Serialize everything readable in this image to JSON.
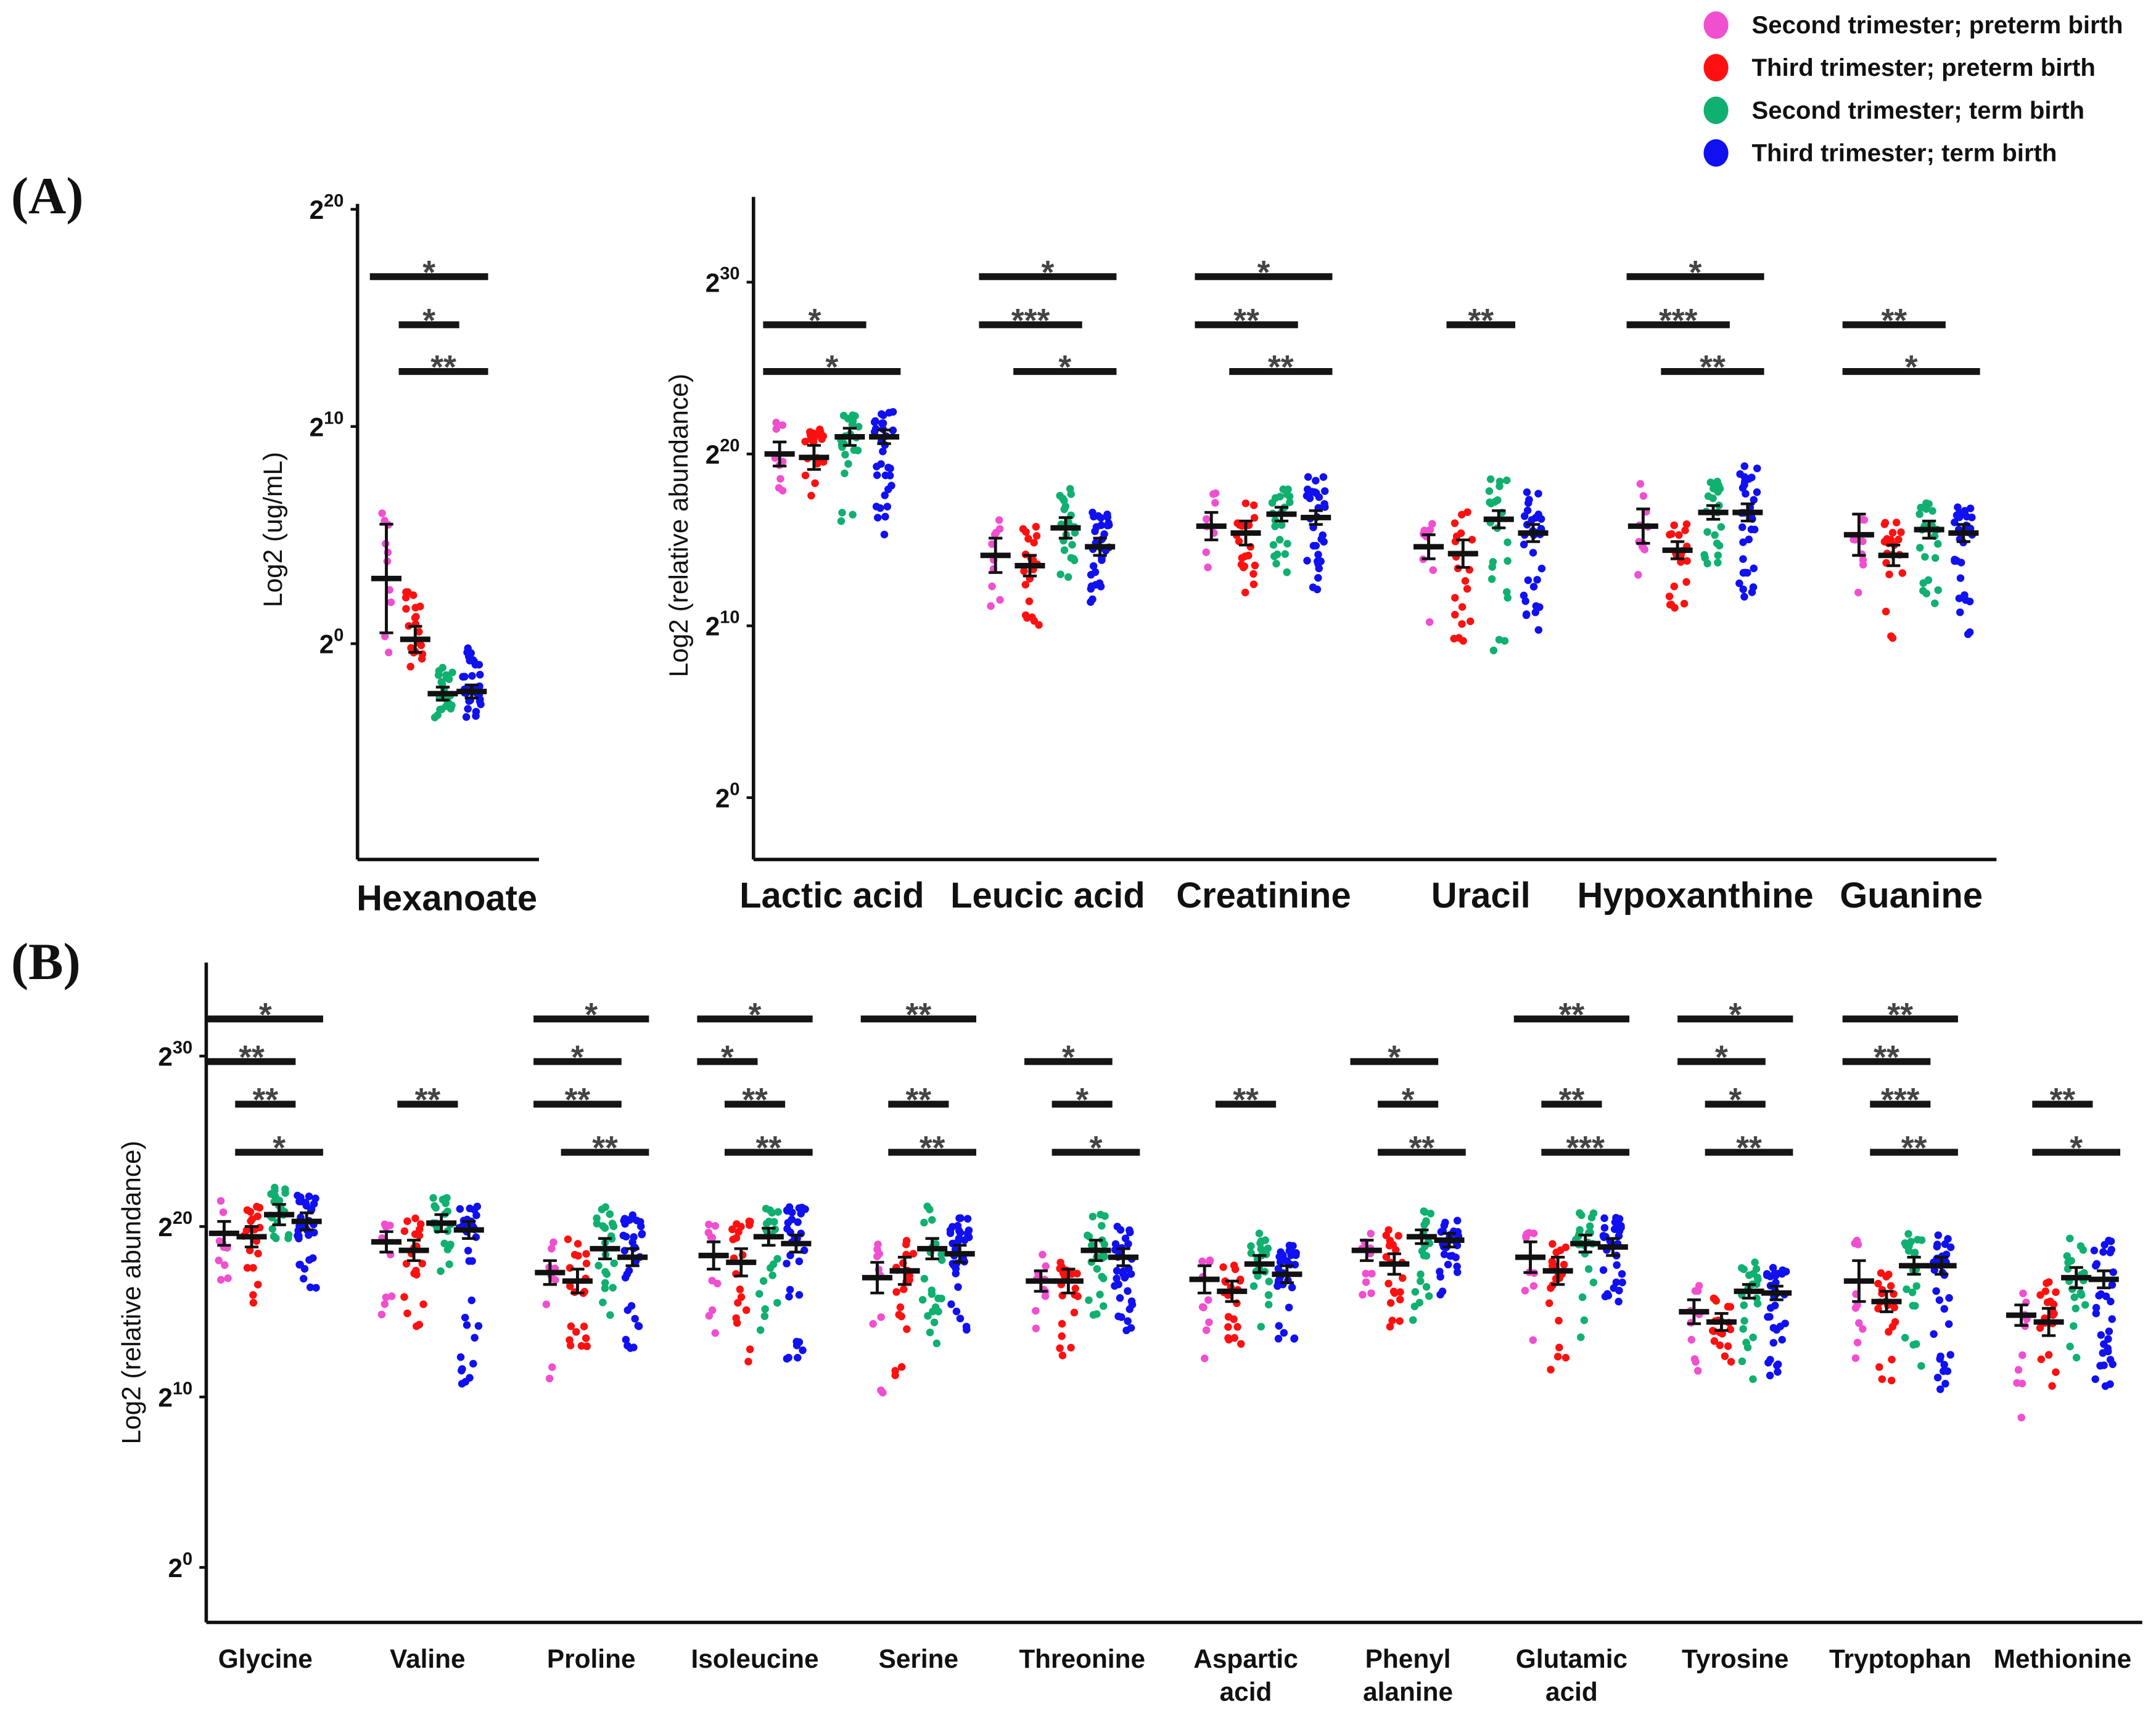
{
  "panels": {
    "a": "(A)",
    "b": "(B)"
  },
  "legend": [
    {
      "label": "Second trimester; preterm birth",
      "color": "#f04fd0"
    },
    {
      "label": "Third trimester; preterm birth",
      "color": "#ff1010"
    },
    {
      "label": "Second trimester; term birth",
      "color": "#10b070"
    },
    {
      "label": "Third trimester; term birth",
      "color": "#1010f0"
    }
  ],
  "chart_data": [
    {
      "type": "scatter",
      "id": "hex",
      "ylabel": "Log2 (ug/mL)",
      "yticks": [
        0,
        10,
        20
      ],
      "tick_base": "2",
      "ylim": [
        -10,
        20
      ],
      "compounds": [
        {
          "name": [
            "Hexanoate"
          ],
          "medians": [
            3.0,
            0.2,
            -2.3,
            -2.2
          ],
          "sem": [
            2.5,
            0.6,
            0.3,
            0.3
          ],
          "spread": [
            [
              -4,
              3.5
            ],
            [
              -2,
              3
            ],
            [
              -1.2,
              1.2
            ],
            [
              -1.2,
              2.2
            ]
          ],
          "sig": [
            {
              "from": 0,
              "to": 3,
              "label": "*",
              "level": 0
            },
            {
              "from": 1,
              "to": 2,
              "label": "*",
              "level": 1
            },
            {
              "from": 1,
              "to": 3,
              "label": "**",
              "level": 2
            }
          ]
        }
      ]
    },
    {
      "type": "scatter",
      "id": "A",
      "ylabel": "Log2 (relative abundance)",
      "yticks": [
        0,
        10,
        20,
        30
      ],
      "tick_base": "2",
      "ylim": [
        -3.5,
        35
      ],
      "compounds": [
        {
          "name": [
            "Lactic acid"
          ],
          "medians": [
            20.0,
            19.8,
            21.0,
            21.0
          ],
          "sem": [
            0.7,
            0.7,
            0.5,
            0.4
          ],
          "spread": [
            [
              -2.6,
              2
            ],
            [
              -3,
              2
            ],
            [
              -5.5,
              1.5
            ],
            [
              -6,
              1.5
            ]
          ],
          "sig": [
            {
              "from": 0,
              "to": 2,
              "label": "*",
              "level": 1
            },
            {
              "from": 0,
              "to": 3,
              "label": "*",
              "level": 2
            }
          ]
        },
        {
          "name": [
            "Leucic acid"
          ],
          "medians": [
            14.1,
            13.5,
            15.7,
            14.6
          ],
          "sem": [
            1.0,
            0.6,
            0.6,
            0.5
          ],
          "spread": [
            [
              -3.5,
              2.5
            ],
            [
              -3.5,
              2.5
            ],
            [
              -3,
              2.5
            ],
            [
              -3.8,
              2.2
            ]
          ],
          "sig": [
            {
              "from": 0,
              "to": 3,
              "label": "*",
              "level": 0
            },
            {
              "from": 0,
              "to": 2,
              "label": "***",
              "level": 1
            },
            {
              "from": 1,
              "to": 3,
              "label": "*",
              "level": 2
            }
          ]
        },
        {
          "name": [
            "Creatinine"
          ],
          "medians": [
            15.8,
            15.4,
            16.5,
            16.3
          ],
          "sem": [
            0.8,
            0.7,
            0.4,
            0.4
          ],
          "spread": [
            [
              -3,
              2.5
            ],
            [
              -4,
              2
            ],
            [
              -3.4,
              1.5
            ],
            [
              -4.5,
              2.5
            ]
          ],
          "sig": [
            {
              "from": 0,
              "to": 3,
              "label": "*",
              "level": 0
            },
            {
              "from": 0,
              "to": 2,
              "label": "**",
              "level": 1
            },
            {
              "from": 1,
              "to": 3,
              "label": "**",
              "level": 2
            }
          ]
        },
        {
          "name": [
            "Uracil"
          ],
          "medians": [
            14.6,
            14.2,
            16.2,
            15.4
          ],
          "sem": [
            0.7,
            0.8,
            0.5,
            0.5
          ],
          "spread": [
            [
              -5,
              2
            ],
            [
              -6,
              2.5
            ],
            [
              -8,
              2.5
            ],
            [
              -6.5,
              2.5
            ]
          ],
          "sig": [
            {
              "from": 1,
              "to": 2,
              "label": "**",
              "level": 1
            }
          ]
        },
        {
          "name": [
            "Hypoxanthine"
          ],
          "medians": [
            15.8,
            14.4,
            16.6,
            16.6
          ],
          "sem": [
            1.0,
            0.5,
            0.4,
            0.5
          ],
          "spread": [
            [
              -3.5,
              2.5
            ],
            [
              -3.4,
              2
            ],
            [
              -3.4,
              2
            ],
            [
              -5,
              2.8
            ]
          ],
          "sig": [
            {
              "from": 0,
              "to": 3,
              "label": "*",
              "level": 0
            },
            {
              "from": 0,
              "to": 2,
              "label": "***",
              "level": 1
            },
            {
              "from": 1,
              "to": 3,
              "label": "**",
              "level": 2
            }
          ]
        },
        {
          "name": [
            "Guanine"
          ],
          "medians": [
            15.3,
            14.1,
            15.6,
            15.4
          ],
          "sem": [
            1.2,
            0.6,
            0.5,
            0.5
          ],
          "spread": [
            [
              -5,
              2.5
            ],
            [
              -5.5,
              2
            ],
            [
              -4.5,
              1.6
            ],
            [
              -6,
              1.6
            ]
          ],
          "sig": [
            {
              "from": 0,
              "to": 2,
              "label": "**",
              "level": 1
            },
            {
              "from": 0,
              "to": 3,
              "label": "*",
              "level": 2
            }
          ]
        }
      ]
    },
    {
      "type": "scatter",
      "id": "B",
      "ylabel": "Log2 (relative abundance)",
      "yticks": [
        0,
        10,
        20,
        30
      ],
      "tick_base": "2",
      "ylim": [
        -3.2,
        35
      ],
      "compounds": [
        {
          "name": [
            "Glycine"
          ],
          "medians": [
            19.6,
            19.4,
            20.7,
            20.3
          ],
          "sem": [
            0.7,
            0.6,
            0.6,
            0.5
          ],
          "spread": [
            [
              -4,
              2
            ],
            [
              -4.2,
              1.8
            ],
            [
              -3.4,
              1.6
            ],
            [
              -4.8,
              1.6
            ]
          ],
          "sig": [
            {
              "from": 0,
              "to": 3,
              "label": "*",
              "level": 0
            },
            {
              "from": 0,
              "to": 2,
              "label": "**",
              "level": 1
            },
            {
              "from": 1,
              "to": 2,
              "label": "**",
              "level": 2
            },
            {
              "from": 1,
              "to": 3,
              "label": "*",
              "level": 3
            }
          ]
        },
        {
          "name": [
            "Valine"
          ],
          "medians": [
            19.1,
            18.6,
            20.2,
            19.8
          ],
          "sem": [
            0.6,
            0.6,
            0.5,
            0.5
          ],
          "spread": [
            [
              -4.5,
              2
            ],
            [
              -4.5,
              2
            ],
            [
              -3,
              1.5
            ],
            [
              -9.5,
              1.5
            ]
          ],
          "sig": [
            {
              "from": 1,
              "to": 2,
              "label": "**",
              "level": 2
            }
          ]
        },
        {
          "name": [
            "Proline"
          ],
          "medians": [
            17.3,
            16.8,
            18.7,
            18.2
          ],
          "sem": [
            0.7,
            0.7,
            0.6,
            0.5
          ],
          "spread": [
            [
              -6.5,
              2
            ],
            [
              -4,
              2.5
            ],
            [
              -5,
              2.5
            ],
            [
              -5.5,
              2.5
            ]
          ],
          "sig": [
            {
              "from": 0,
              "to": 3,
              "label": "*",
              "level": 0
            },
            {
              "from": 0,
              "to": 2,
              "label": "*",
              "level": 1
            },
            {
              "from": 0,
              "to": 2,
              "label": "**",
              "level": 2
            },
            {
              "from": 1,
              "to": 3,
              "label": "**",
              "level": 3
            }
          ]
        },
        {
          "name": [
            "Isoleucine"
          ],
          "medians": [
            18.3,
            17.9,
            19.4,
            19.0
          ],
          "sem": [
            0.8,
            0.8,
            0.5,
            0.5
          ],
          "spread": [
            [
              -6,
              2
            ],
            [
              -6,
              2.5
            ],
            [
              -6,
              1.8
            ],
            [
              -7,
              2.2
            ]
          ],
          "sig": [
            {
              "from": 0,
              "to": 3,
              "label": "*",
              "level": 0
            },
            {
              "from": 0,
              "to": 1,
              "label": "*",
              "level": 1
            },
            {
              "from": 1,
              "to": 2,
              "label": "**",
              "level": 2
            },
            {
              "from": 1,
              "to": 3,
              "label": "**",
              "level": 3
            }
          ]
        },
        {
          "name": [
            "Serine"
          ],
          "medians": [
            17.0,
            17.4,
            18.7,
            18.4
          ],
          "sem": [
            0.9,
            0.8,
            0.6,
            0.5
          ],
          "spread": [
            [
              -8,
              2
            ],
            [
              -6.5,
              2.2
            ],
            [
              -6,
              2.5
            ],
            [
              -5,
              2.2
            ]
          ],
          "sig": [
            {
              "from": 0,
              "to": 3,
              "label": "**",
              "level": 0
            },
            {
              "from": 1,
              "to": 2,
              "label": "**",
              "level": 2
            },
            {
              "from": 1,
              "to": 3,
              "label": "**",
              "level": 3
            }
          ]
        },
        {
          "name": [
            "Threonine"
          ],
          "medians": [
            16.8,
            16.8,
            18.6,
            18.2
          ],
          "sem": [
            0.6,
            0.7,
            0.6,
            0.5
          ],
          "spread": [
            [
              -3,
              1.8
            ],
            [
              -4.5,
              2
            ],
            [
              -4,
              2.3
            ],
            [
              -4.5,
              1.8
            ]
          ],
          "sig": [
            {
              "from": 0,
              "to": 2,
              "label": "*",
              "level": 1
            },
            {
              "from": 1,
              "to": 2,
              "label": "*",
              "level": 2
            },
            {
              "from": 1,
              "to": 3,
              "label": "*",
              "level": 3
            }
          ]
        },
        {
          "name": [
            "Aspartic",
            "acid"
          ],
          "medians": [
            16.9,
            16.2,
            17.8,
            17.2
          ],
          "sem": [
            0.8,
            0.6,
            0.5,
            0.5
          ],
          "spread": [
            [
              -5,
              2
            ],
            [
              -3.5,
              2
            ],
            [
              -3.8,
              1.8
            ],
            [
              -3.8,
              2
            ]
          ],
          "sig": [
            {
              "from": 1,
              "to": 2,
              "label": "**",
              "level": 2
            }
          ]
        },
        {
          "name": [
            "Phenyl",
            "alanine"
          ],
          "medians": [
            18.6,
            17.8,
            19.4,
            19.2
          ],
          "sem": [
            0.6,
            0.6,
            0.4,
            0.4
          ],
          "spread": [
            [
              -3,
              1.5
            ],
            [
              -3.8,
              2
            ],
            [
              -5,
              1.6
            ],
            [
              -3.5,
              1.2
            ]
          ],
          "sig": [
            {
              "from": 0,
              "to": 2,
              "label": "*",
              "level": 1
            },
            {
              "from": 1,
              "to": 2,
              "label": "*",
              "level": 2
            },
            {
              "from": 1,
              "to": 3,
              "label": "**",
              "level": 3
            }
          ]
        },
        {
          "name": [
            "Glutamic",
            "acid"
          ],
          "medians": [
            18.2,
            17.4,
            19.0,
            18.8
          ],
          "sem": [
            0.9,
            0.8,
            0.5,
            0.5
          ],
          "spread": [
            [
              -6,
              2
            ],
            [
              -6,
              2.2
            ],
            [
              -6,
              1.8
            ],
            [
              -5,
              1.8
            ]
          ],
          "sig": [
            {
              "from": 0,
              "to": 3,
              "label": "**",
              "level": 0
            },
            {
              "from": 1,
              "to": 2,
              "label": "**",
              "level": 2
            },
            {
              "from": 1,
              "to": 3,
              "label": "***",
              "level": 3
            }
          ]
        },
        {
          "name": [
            "Tyrosine"
          ],
          "medians": [
            15.0,
            14.4,
            16.2,
            16.1
          ],
          "sem": [
            0.7,
            0.5,
            0.4,
            0.4
          ],
          "spread": [
            [
              -4.5,
              1.8
            ],
            [
              -3.5,
              1.5
            ],
            [
              -6,
              1.8
            ],
            [
              -5,
              1.5
            ]
          ],
          "sig": [
            {
              "from": 0,
              "to": 3,
              "label": "*",
              "level": 0
            },
            {
              "from": 0,
              "to": 2,
              "label": "*",
              "level": 1
            },
            {
              "from": 1,
              "to": 2,
              "label": "*",
              "level": 2
            },
            {
              "from": 1,
              "to": 3,
              "label": "**",
              "level": 3
            }
          ]
        },
        {
          "name": [
            "Tryptophan"
          ],
          "medians": [
            16.8,
            15.6,
            17.7,
            17.7
          ],
          "sem": [
            1.2,
            0.6,
            0.5,
            0.5
          ],
          "spread": [
            [
              -7,
              2.5
            ],
            [
              -5,
              2
            ],
            [
              -6,
              2
            ],
            [
              -7.5,
              2
            ]
          ],
          "sig": [
            {
              "from": 0,
              "to": 3,
              "label": "**",
              "level": 0
            },
            {
              "from": 0,
              "to": 2,
              "label": "**",
              "level": 1
            },
            {
              "from": 1,
              "to": 2,
              "label": "***",
              "level": 2
            },
            {
              "from": 1,
              "to": 3,
              "label": "**",
              "level": 3
            }
          ]
        },
        {
          "name": [
            "Methionine"
          ],
          "medians": [
            14.8,
            14.4,
            17.0,
            16.9
          ],
          "sem": [
            0.6,
            0.8,
            0.6,
            0.5
          ],
          "spread": [
            [
              -7.5,
              1.8
            ],
            [
              -4.5,
              2.5
            ],
            [
              -5,
              2.5
            ],
            [
              -6.5,
              2.5
            ]
          ],
          "sig": [
            {
              "from": 1,
              "to": 2,
              "label": "**",
              "level": 2
            },
            {
              "from": 1,
              "to": 3,
              "label": "*",
              "level": 3
            }
          ]
        }
      ]
    }
  ]
}
